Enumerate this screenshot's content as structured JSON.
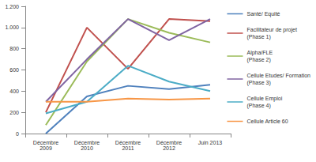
{
  "chart_data": {
    "type": "line",
    "categories": [
      "Décembre 2009",
      "Décembre 2010",
      "Décembre 2011",
      "Décembre 2012",
      "Juin 2013"
    ],
    "series": [
      {
        "name": "Santé/ Equité",
        "color": "#4f81bd",
        "values": [
          0,
          350,
          450,
          420,
          460
        ]
      },
      {
        "name": "Facilitateur de projet (Phase 1)",
        "color": "#c0504d",
        "values": [
          200,
          1000,
          610,
          1080,
          1060
        ]
      },
      {
        "name": "Alpha/FLE (Phase 2)",
        "color": "#9bbb59",
        "values": [
          80,
          680,
          1080,
          950,
          860
        ]
      },
      {
        "name": "Cellule Etudes/ Formation (Phase 3)",
        "color": "#8064a2",
        "values": [
          300,
          700,
          1080,
          880,
          1080
        ]
      },
      {
        "name": "Cellule Emploi (Phase 4)",
        "color": "#4bacc6",
        "values": [
          190,
          300,
          640,
          490,
          400
        ]
      },
      {
        "name": "Cellule Article 60",
        "color": "#f79646",
        "values": [
          300,
          300,
          330,
          320,
          330
        ]
      }
    ],
    "ylim": [
      0,
      1200
    ],
    "yticks": [
      0,
      200,
      400,
      600,
      800,
      {
        "value": 1000,
        "label": "1.000"
      },
      {
        "value": 1200,
        "label": "1.200"
      }
    ],
    "grid": false,
    "legend": "right"
  }
}
